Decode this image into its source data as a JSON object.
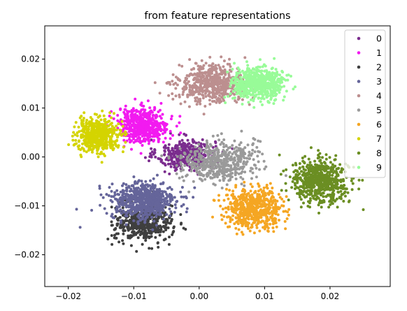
{
  "chart_data": {
    "type": "scatter",
    "title": "from feature representations",
    "xlabel": "",
    "ylabel": "",
    "xlim": [
      -0.0236,
      0.0292
    ],
    "ylim": [
      -0.0265,
      0.0268
    ],
    "xticks": [
      -0.02,
      -0.01,
      0.0,
      0.01,
      0.02
    ],
    "xtick_labels": [
      "−0.02",
      "−0.01",
      "0.00",
      "0.01",
      "0.02"
    ],
    "yticks": [
      0.02,
      0.01,
      0.0,
      -0.01,
      -0.02
    ],
    "ytick_labels": [
      "0.02",
      "0.01",
      "0.00",
      "−0.01",
      "−0.02"
    ],
    "grid": false,
    "legend_position": "top-right",
    "marker_radius": 2,
    "series": [
      {
        "name": "0",
        "color": "#7B2D8E",
        "center": [
          -0.002,
          0.0005
        ],
        "spread": [
          0.004,
          0.0028
        ],
        "count": 380
      },
      {
        "name": "1",
        "color": "#F21AF0",
        "center": [
          -0.0085,
          0.0065
        ],
        "spread": [
          0.0035,
          0.0032
        ],
        "count": 520
      },
      {
        "name": "2",
        "color": "#3F3F3F",
        "center": [
          -0.0085,
          -0.0135
        ],
        "spread": [
          0.004,
          0.0035
        ],
        "count": 480
      },
      {
        "name": "3",
        "color": "#65659A",
        "center": [
          -0.0085,
          -0.009
        ],
        "spread": [
          0.0045,
          0.0035
        ],
        "count": 620
      },
      {
        "name": "4",
        "color": "#BC8F8F",
        "center": [
          0.002,
          0.015
        ],
        "spread": [
          0.0048,
          0.0035
        ],
        "count": 560
      },
      {
        "name": "5",
        "color": "#9A9A9A",
        "center": [
          0.003,
          -0.001
        ],
        "spread": [
          0.005,
          0.0038
        ],
        "count": 520
      },
      {
        "name": "6",
        "color": "#F5A623",
        "center": [
          0.0085,
          -0.0105
        ],
        "spread": [
          0.004,
          0.0035
        ],
        "count": 600
      },
      {
        "name": "7",
        "color": "#D4D400",
        "center": [
          -0.0155,
          0.0045
        ],
        "spread": [
          0.003,
          0.003
        ],
        "count": 520
      },
      {
        "name": "8",
        "color": "#6B8E23",
        "center": [
          0.0185,
          -0.005
        ],
        "spread": [
          0.0038,
          0.004
        ],
        "count": 620
      },
      {
        "name": "9",
        "color": "#98FB98",
        "center": [
          0.009,
          0.015
        ],
        "spread": [
          0.0035,
          0.003
        ],
        "count": 620
      }
    ]
  }
}
